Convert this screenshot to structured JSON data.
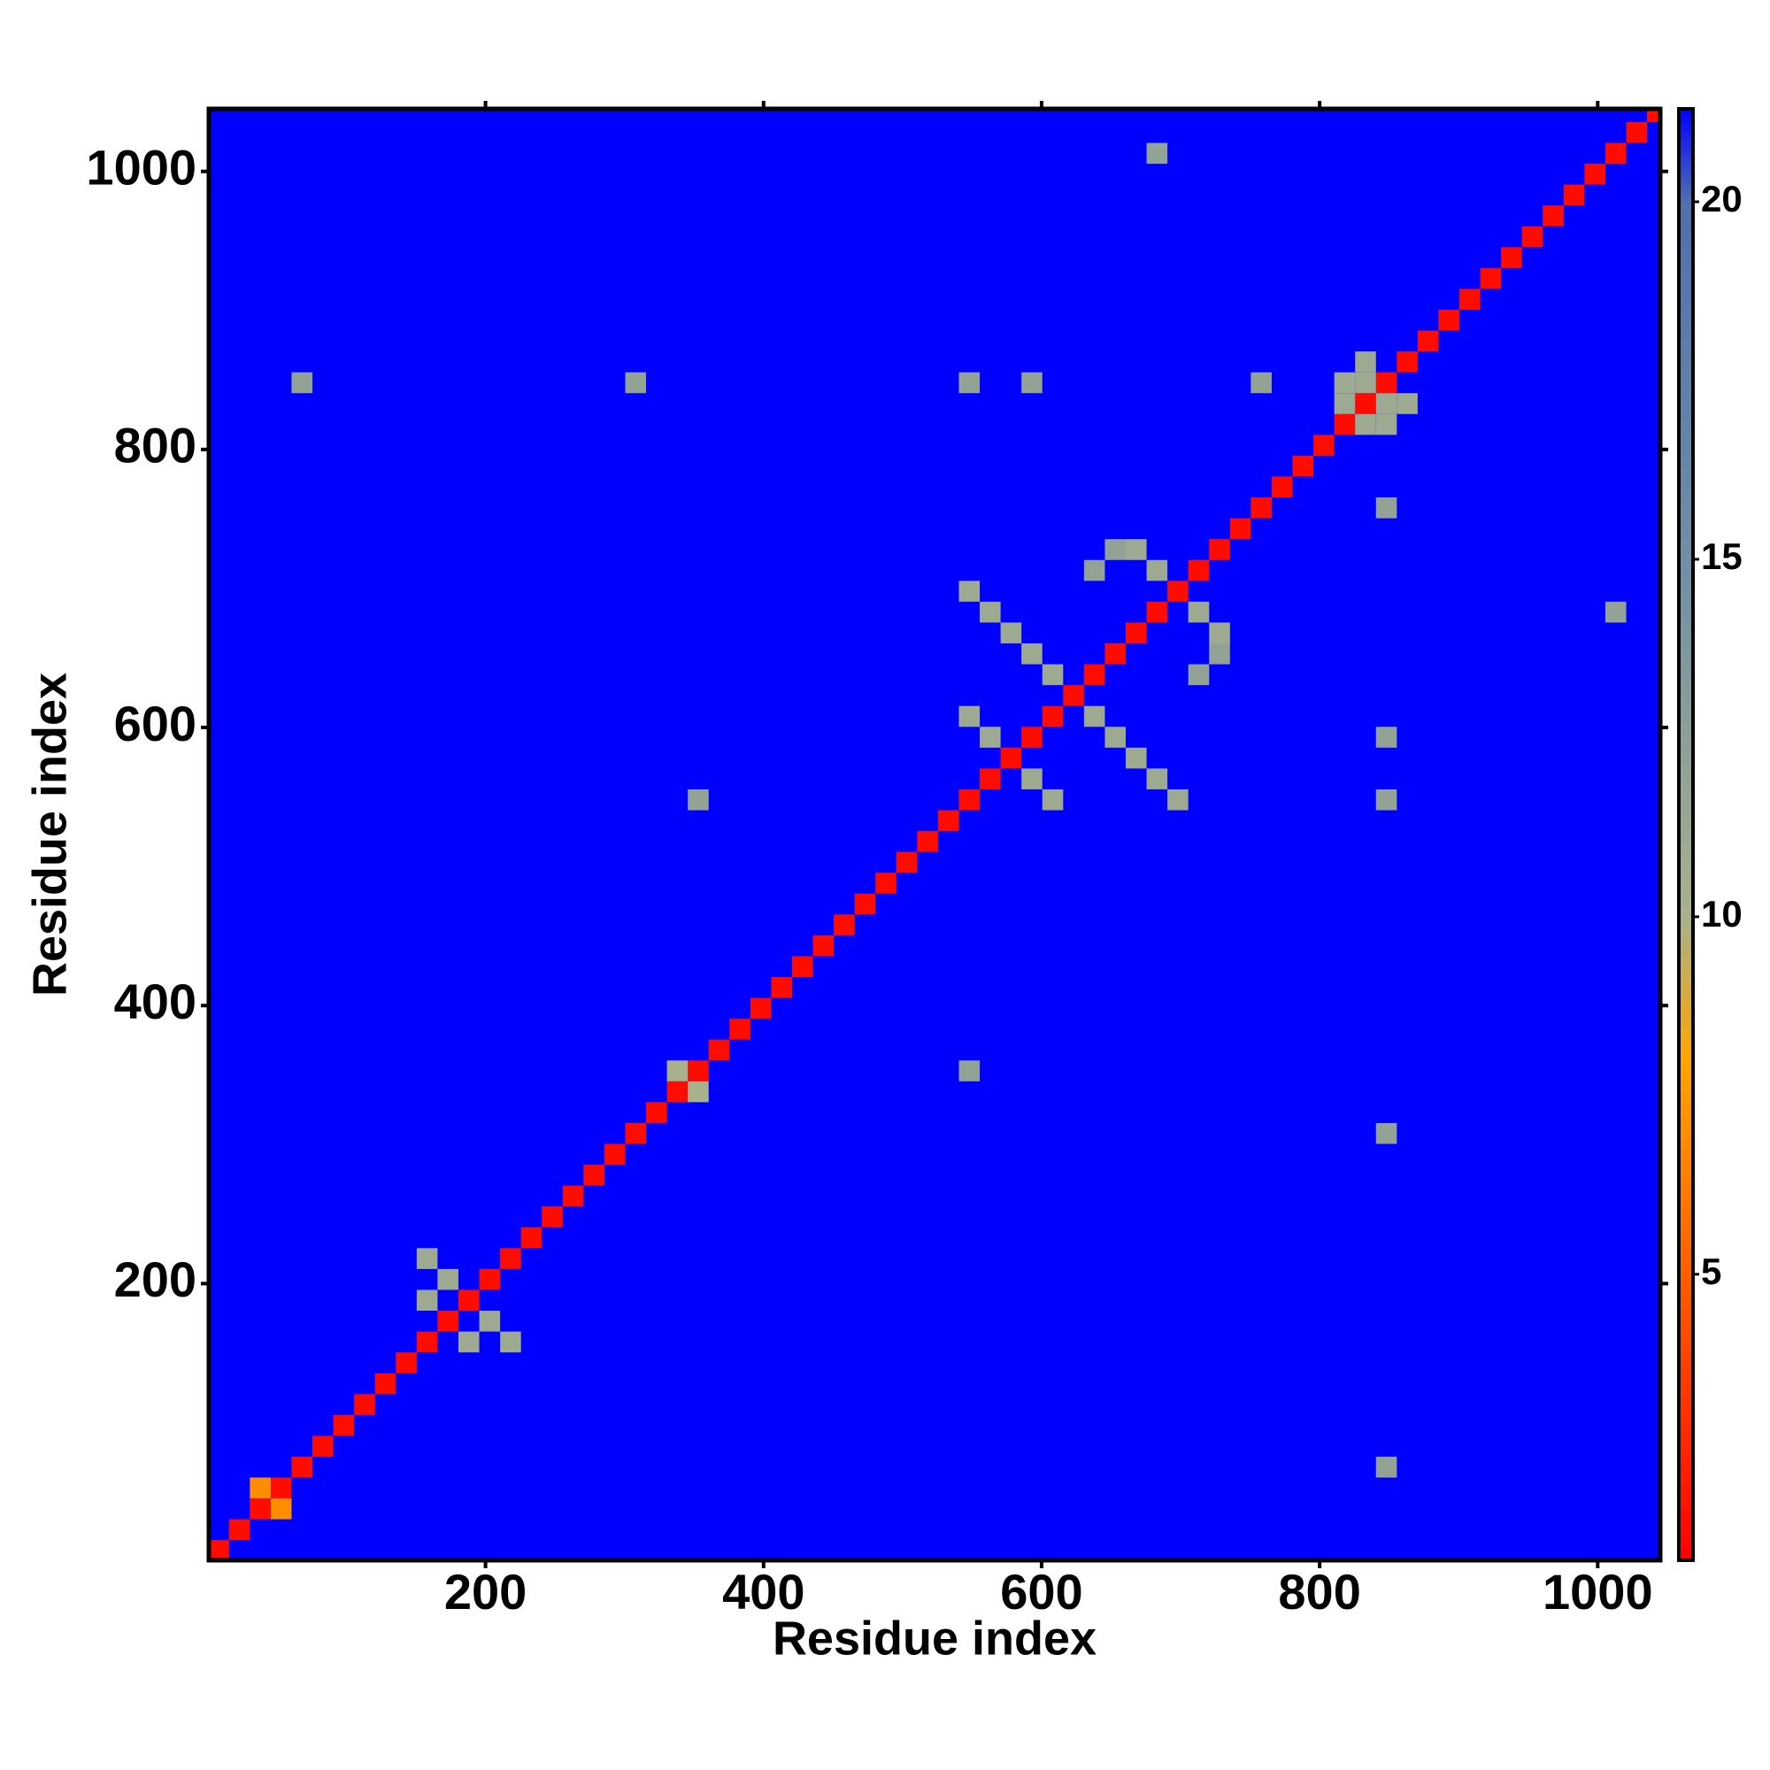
{
  "chart_data": {
    "type": "heatmap",
    "xlabel": "Residue index",
    "ylabel": "Residue index",
    "xlim": [
      1,
      1045
    ],
    "ylim": [
      1,
      1045
    ],
    "xticks": [
      200,
      400,
      600,
      800,
      1000
    ],
    "yticks": [
      200,
      400,
      600,
      800,
      1000
    ],
    "zlim": [
      1,
      21.3
    ],
    "zticks": [
      5,
      10,
      15,
      20
    ],
    "colorscale": [
      [
        1,
        "#ff0000"
      ],
      [
        8,
        "#ffa500"
      ],
      [
        10,
        "#a9b18c"
      ],
      [
        15,
        "#6f8fa6"
      ],
      [
        20,
        "#4f6fae"
      ],
      [
        21.3,
        "#0000ff"
      ]
    ],
    "cell_size": 15,
    "x": [
      8,
      23,
      38,
      53,
      68,
      83,
      98,
      113,
      128,
      143,
      158,
      173,
      188,
      203,
      218,
      233,
      248,
      263,
      278,
      293,
      308,
      323,
      338,
      353,
      368,
      383,
      398,
      413,
      428,
      443,
      458,
      473,
      488,
      503,
      518,
      533,
      548,
      563,
      578,
      593,
      608,
      623,
      638,
      653,
      668,
      683,
      698,
      713,
      728,
      743,
      758,
      773,
      788,
      803,
      818,
      833,
      848,
      863,
      878,
      893,
      908,
      923,
      938,
      953,
      968,
      983,
      998,
      1013,
      1028,
      1043,
      548,
      563,
      578,
      593,
      608,
      638,
      653,
      668,
      683,
      698,
      548,
      563,
      593,
      608,
      683,
      668,
      713,
      728,
      638,
      713,
      653,
      728,
      818,
      833,
      848,
      833,
      818,
      848,
      863,
      833,
      158,
      173,
      203,
      218,
      158,
      188,
      338,
      353,
      848,
      68,
      848,
      548,
      353,
      548,
      848,
      593,
      848,
      758,
      848,
      308,
      683,
      1013,
      38,
      53
    ],
    "y": [
      8,
      23,
      38,
      53,
      68,
      83,
      98,
      113,
      128,
      143,
      158,
      173,
      188,
      203,
      218,
      233,
      248,
      263,
      278,
      293,
      308,
      323,
      338,
      353,
      368,
      383,
      398,
      413,
      428,
      443,
      458,
      473,
      488,
      503,
      518,
      533,
      548,
      563,
      578,
      593,
      608,
      623,
      638,
      653,
      668,
      683,
      698,
      713,
      728,
      743,
      758,
      773,
      788,
      803,
      818,
      833,
      848,
      863,
      878,
      893,
      908,
      923,
      938,
      953,
      968,
      983,
      998,
      1013,
      1028,
      1043,
      698,
      683,
      668,
      653,
      638,
      608,
      593,
      578,
      563,
      548,
      608,
      593,
      563,
      548,
      713,
      728,
      683,
      668,
      713,
      638,
      728,
      653,
      833,
      818,
      833,
      848,
      848,
      818,
      833,
      863,
      218,
      203,
      173,
      158,
      188,
      158,
      353,
      338,
      68,
      848,
      548,
      848,
      548,
      353,
      593,
      848,
      758,
      848,
      308,
      848,
      1013,
      683,
      53,
      38
    ],
    "values": [
      1.5,
      1.5,
      1.5,
      1.5,
      1.5,
      1.5,
      1.5,
      1.5,
      1.5,
      1.5,
      1.5,
      1.5,
      1.5,
      1.5,
      1.5,
      1.5,
      1.5,
      1.5,
      1.5,
      1.5,
      1.5,
      1.5,
      1.5,
      1.5,
      1.5,
      1.5,
      1.5,
      1.5,
      1.5,
      1.5,
      1.5,
      1.5,
      1.5,
      1.5,
      1.5,
      1.5,
      1.5,
      1.5,
      1.5,
      1.5,
      1.5,
      1.5,
      1.5,
      1.5,
      1.5,
      1.5,
      1.5,
      1.5,
      1.5,
      1.5,
      1.5,
      1.5,
      1.5,
      1.5,
      1.5,
      1.5,
      1.5,
      1.5,
      1.5,
      1.5,
      1.5,
      1.5,
      1.5,
      1.5,
      1.5,
      1.5,
      1.5,
      1.5,
      1.5,
      1.5,
      11,
      11,
      11,
      11,
      11,
      11,
      11,
      11,
      11,
      11,
      11,
      11,
      11,
      11,
      11,
      11,
      11,
      11,
      12,
      12,
      12,
      12,
      11,
      11,
      11,
      11,
      11,
      11,
      11,
      11,
      11,
      11,
      11,
      11,
      11,
      11,
      10,
      10,
      12,
      12,
      12,
      12,
      12,
      12,
      12,
      12,
      12,
      12,
      12,
      12,
      12,
      12,
      7,
      7
    ]
  }
}
